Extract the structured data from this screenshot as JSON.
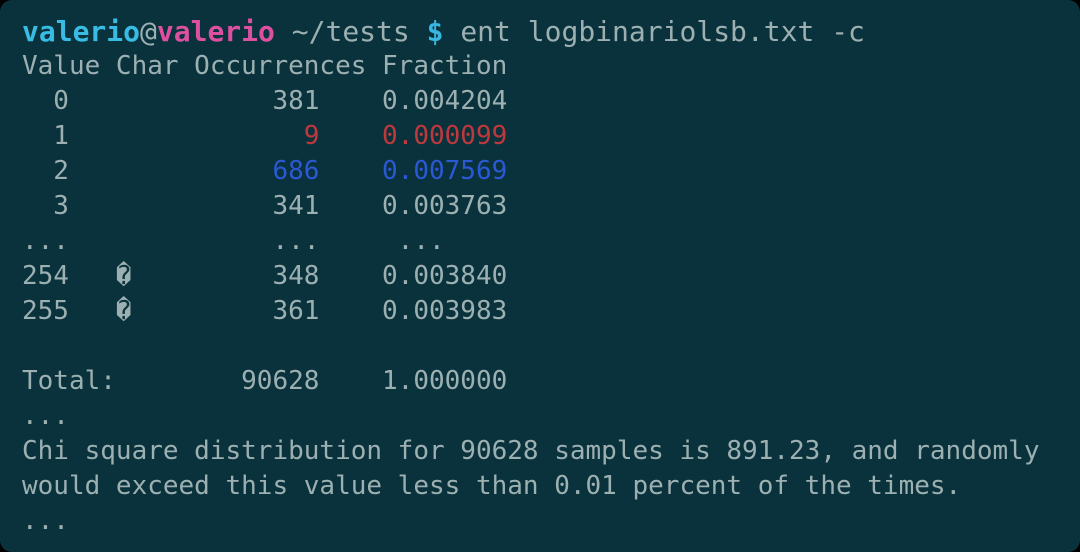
{
  "colors": {
    "background": "#0a323c",
    "foreground": "#9cb0b2",
    "user_cyan": "#38bce4",
    "host_magenta": "#dd4f9f",
    "prompt_symbol_cyan": "#38b5e0",
    "highlight_red": "#bf393c",
    "highlight_blue": "#2b58d4"
  },
  "prompt": {
    "user": "valerio",
    "separator": "@",
    "host": "valerio",
    "cwd": " ~/tests ",
    "symbol": "$",
    "command": " ent logbinariolsb.txt -c"
  },
  "frequency_table": {
    "header": "Value Char Occurrences Fraction",
    "rows": [
      {
        "value": "0",
        "char": "",
        "occurrences": "381",
        "fraction": "0.004204",
        "left": "  0             ",
        "right": "381    0.004204",
        "highlight": "none"
      },
      {
        "value": "1",
        "char": "",
        "occurrences": "9",
        "fraction": "0.000099",
        "left": "  1             ",
        "right": "  9    0.000099",
        "highlight": "red"
      },
      {
        "value": "2",
        "char": "",
        "occurrences": "686",
        "fraction": "0.007569",
        "left": "  2             ",
        "right": "686    0.007569",
        "highlight": "blue"
      },
      {
        "value": "3",
        "char": "",
        "occurrences": "341",
        "fraction": "0.003763",
        "left": "  3             ",
        "right": "341    0.003763",
        "highlight": "none"
      },
      {
        "value": "...",
        "char": "",
        "occurrences": "...",
        "fraction": "...",
        "left": "...             ",
        "right": "...     ...",
        "highlight": "none"
      },
      {
        "value": "254",
        "char": "�",
        "occurrences": "348",
        "fraction": "0.003840",
        "left": "254   �         ",
        "right": "348    0.003840",
        "highlight": "none"
      },
      {
        "value": "255",
        "char": "�",
        "occurrences": "361",
        "fraction": "0.003983",
        "left": "255   �         ",
        "right": "361    0.003983",
        "highlight": "none"
      }
    ],
    "blank_line": "",
    "total_line": "Total:        90628    1.000000"
  },
  "ellipsis_after_total": "...",
  "chi_square": {
    "line1": "Chi square distribution for 90628 samples is 891.23, and randomly",
    "line2": "would exceed this value less than 0.01 percent of the times."
  },
  "ellipsis_end": "..."
}
